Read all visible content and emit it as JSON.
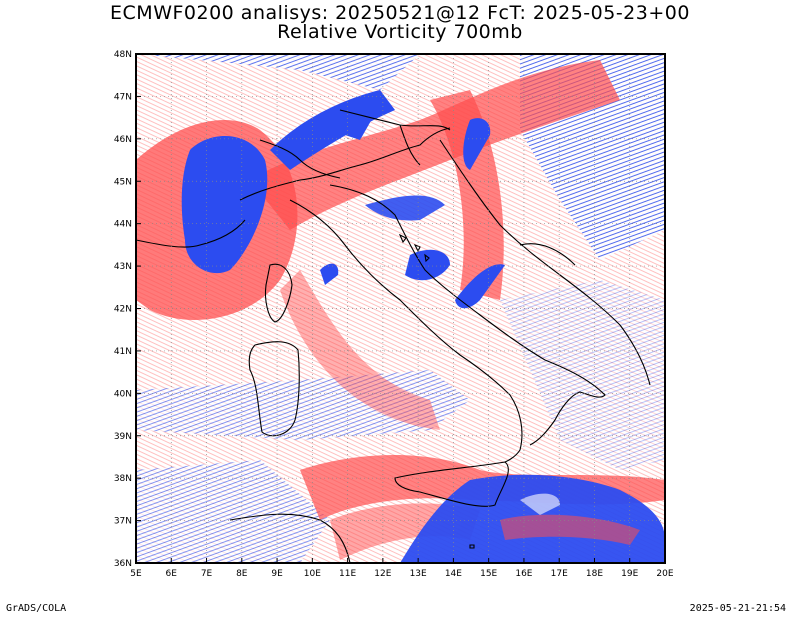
{
  "title_line1": "ECMWF0200 analisys: 20250521@12 FcT: 2025-05-23+00",
  "title_line2": "Relative Vorticity 700mb",
  "footer_left": "GrADS/COLA",
  "footer_right": "2025-05-21-21:54",
  "map": {
    "lon_range": [
      5,
      20
    ],
    "lat_range": [
      36,
      48
    ],
    "lon_ticks": [
      "5E",
      "6E",
      "7E",
      "8E",
      "9E",
      "10E",
      "11E",
      "12E",
      "13E",
      "14E",
      "15E",
      "16E",
      "17E",
      "18E",
      "19E",
      "20E"
    ],
    "lat_ticks": [
      "36N",
      "37N",
      "38N",
      "39N",
      "40N",
      "41N",
      "42N",
      "43N",
      "44N",
      "45N",
      "46N",
      "47N",
      "48N"
    ],
    "colors": {
      "positive": "#ff3333",
      "negative": "#2244ee",
      "coast": "#000000",
      "grid": "#888888"
    }
  }
}
